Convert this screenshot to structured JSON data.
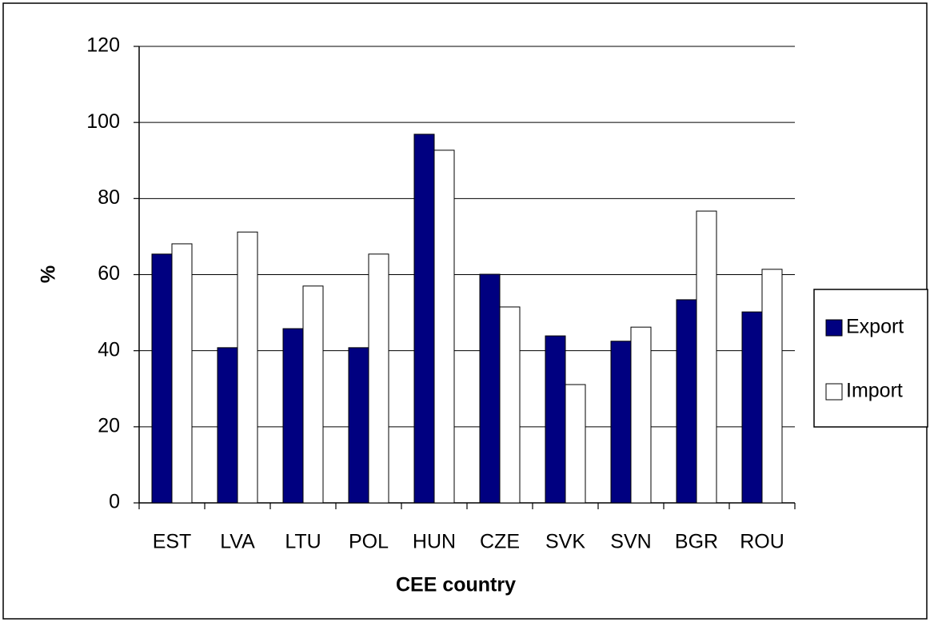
{
  "chart_data": {
    "type": "bar",
    "x_label": "CEE country",
    "y_label": "%",
    "categories": [
      "EST",
      "LVA",
      "LTU",
      "POL",
      "HUN",
      "CZE",
      "SVK",
      "SVN",
      "BGR",
      "ROU"
    ],
    "series": [
      {
        "name": "Export",
        "color": "#000080",
        "values": [
          65.4,
          40.8,
          45.8,
          40.8,
          96.9,
          60.1,
          43.9,
          42.5,
          53.4,
          50.2
        ]
      },
      {
        "name": "Import",
        "color": "#ffffff",
        "values": [
          68.1,
          71.2,
          57.0,
          65.4,
          92.7,
          51.5,
          31.1,
          46.2,
          76.7,
          61.4
        ]
      }
    ],
    "ylim": [
      0,
      120
    ],
    "yticks": [
      0,
      20,
      40,
      60,
      80,
      100,
      120
    ],
    "grid": true,
    "legend": "right"
  }
}
